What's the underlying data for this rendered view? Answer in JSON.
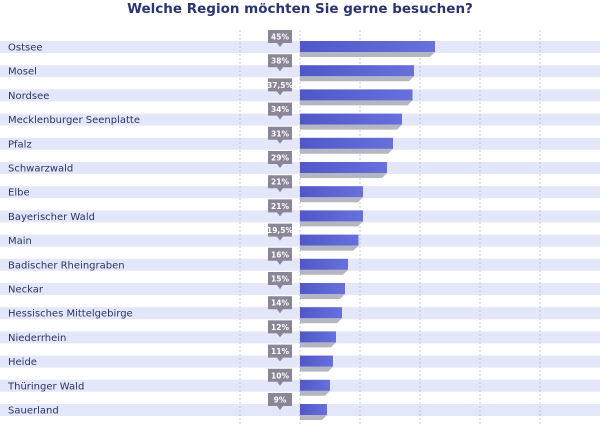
{
  "chart_data": {
    "type": "bar",
    "orientation": "horizontal",
    "title": "Welche Region möchten Sie gerne besuchen?",
    "categories": [
      "Ostsee",
      "Mosel",
      "Nordsee",
      "Mecklenburger Seenplatte",
      "Pfalz",
      "Schwarzwald",
      "Elbe",
      "Bayerischer Wald",
      "Main",
      "Badischer Rheingraben",
      "Neckar",
      "Hessisches Mittelgebirge",
      "Niederrhein",
      "Heide",
      "Thüringer Wald",
      "Sauerland"
    ],
    "values": [
      45,
      38,
      37.5,
      34,
      31,
      29,
      21,
      21,
      19.5,
      16,
      15,
      14,
      12,
      11,
      10,
      9
    ],
    "value_labels": [
      "45%",
      "38%",
      "37,5%",
      "34%",
      "31%",
      "29%",
      "21%",
      "21%",
      "19,5%",
      "16%",
      "15%",
      "14%",
      "12%",
      "11%",
      "10%",
      "9%"
    ],
    "xlim": [
      0,
      100
    ],
    "grid": true,
    "colors": {
      "bar": "#5b63d3",
      "bar_shadow": "#b4b6c2",
      "row_band": "#e4e6fa",
      "badge": "#8a8597",
      "grid": "#b9bbc9",
      "title": "#2a3470",
      "label": "#2b3566"
    }
  }
}
